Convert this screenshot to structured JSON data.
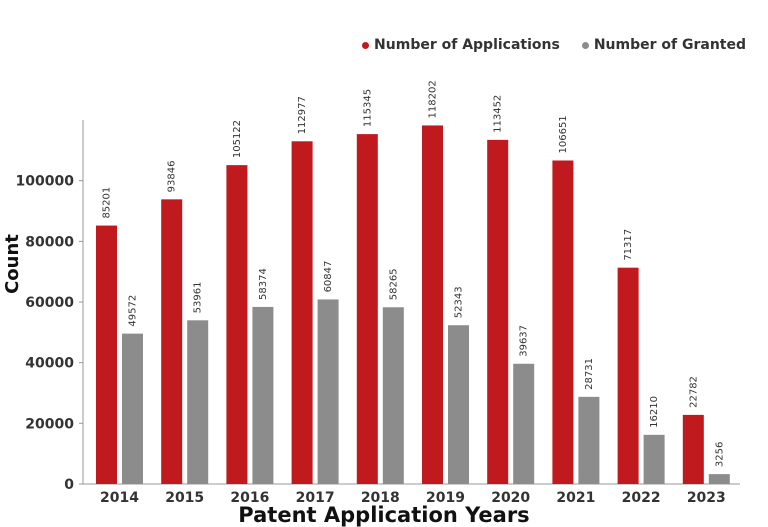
{
  "chart_data": {
    "type": "bar",
    "categories": [
      "2014",
      "2015",
      "2016",
      "2017",
      "2018",
      "2019",
      "2020",
      "2021",
      "2022",
      "2023"
    ],
    "series": [
      {
        "name": "Number of Applications",
        "color": "#c0191e",
        "values": [
          85201,
          93846,
          105122,
          112977,
          115345,
          118202,
          113452,
          106651,
          71317,
          22782
        ]
      },
      {
        "name": "Number of Granted",
        "color": "#8c8c8c",
        "values": [
          49572,
          53961,
          58374,
          60847,
          58265,
          52343,
          39637,
          28731,
          16210,
          3256
        ]
      }
    ],
    "title": "",
    "xlabel": "Patent Application Years",
    "ylabel": "Count",
    "ylim": [
      0,
      120000
    ],
    "yticks": [
      0,
      20000,
      40000,
      60000,
      80000,
      100000
    ],
    "grid": false,
    "legend_position": "top-right"
  }
}
